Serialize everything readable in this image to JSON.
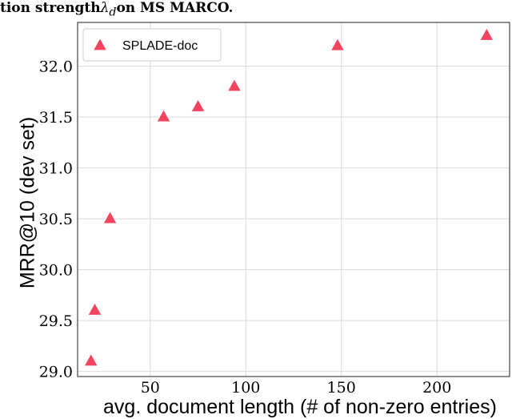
{
  "caption": {
    "prefix": "tion strength ",
    "symbol": "λ",
    "subscript": "d",
    "suffix": " on MS MARCO."
  },
  "chart_data": {
    "type": "scatter",
    "title": "",
    "xlabel": "avg. document length (# of non-zero entries)",
    "ylabel": "MRR@10 (dev set)",
    "xlim": [
      12,
      238
    ],
    "ylim": [
      28.95,
      32.43
    ],
    "xticks": [
      50,
      100,
      150,
      200
    ],
    "yticks": [
      29.0,
      29.5,
      30.0,
      30.5,
      31.0,
      31.5,
      32.0
    ],
    "ytick_labels": [
      "29.0",
      "29.5",
      "30.0",
      "30.5",
      "31.0",
      "31.5",
      "32.0"
    ],
    "grid": true,
    "legend_position": "top-left",
    "series": [
      {
        "name": "SPLADE-doc",
        "marker": "triangle",
        "color": "#f2445f",
        "x": [
          19,
          21,
          29,
          57,
          75,
          94,
          148,
          226
        ],
        "y": [
          29.1,
          29.6,
          30.5,
          31.5,
          31.6,
          31.8,
          32.2,
          32.3
        ]
      }
    ]
  }
}
